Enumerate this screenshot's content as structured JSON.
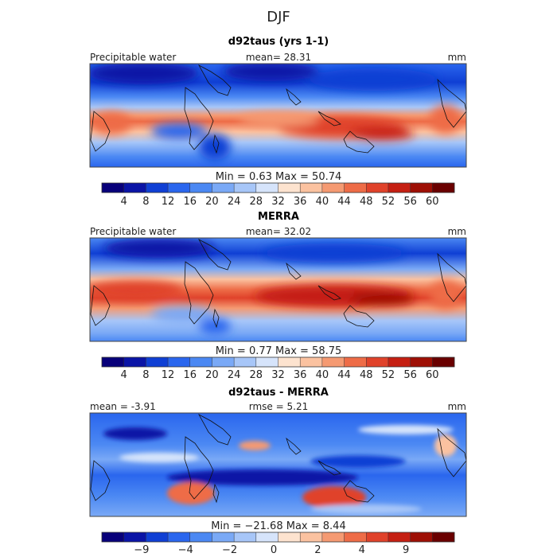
{
  "figure": {
    "title": "DJF"
  },
  "colors": {
    "scale": [
      "#08007a",
      "#0a14a6",
      "#0f3fd4",
      "#2a66ee",
      "#4b88f3",
      "#7aa9f6",
      "#a7c6f8",
      "#d6e4fb",
      "#fde3cf",
      "#fbc2a0",
      "#f59a72",
      "#ee6c47",
      "#e0422a",
      "#c51f12",
      "#9e0f05",
      "#6a0000"
    ],
    "ocean_bg": "#4b88f3",
    "panel_border": "#444444",
    "coast": "#111111"
  },
  "panels": [
    {
      "subtitle": "d92taus (yrs 1-1)",
      "left_label": "Precipitable water",
      "center_label": "mean=  28.31",
      "unit": "mm",
      "range_label": "Min =    0.63  Max =   50.74"
    },
    {
      "subtitle": "MERRA",
      "left_label": "Precipitable water",
      "center_label": "mean=  32.02",
      "unit": "mm",
      "range_label": "Min =    0.77  Max =   58.75"
    },
    {
      "subtitle": "d92taus - MERRA",
      "left_label": "mean =   -3.91",
      "center_label": "rmse =    5.21",
      "unit": "mm",
      "range_label": "Min = −21.68  Max =    8.44"
    }
  ],
  "chart_data": [
    {
      "type": "heatmap",
      "title": "d92taus (yrs 1-1)",
      "variable": "Precipitable water",
      "unit": "mm",
      "mean": 28.31,
      "min": 0.63,
      "max": 50.74,
      "colorbar": {
        "boundaries": [
          4,
          8,
          12,
          16,
          20,
          24,
          28,
          32,
          36,
          40,
          44,
          48,
          52,
          56,
          60
        ],
        "tick_labels": [
          "4",
          "8",
          "12",
          "16",
          "20",
          "24",
          "28",
          "32",
          "36",
          "40",
          "44",
          "48",
          "52",
          "56",
          "60"
        ]
      }
    },
    {
      "type": "heatmap",
      "title": "MERRA",
      "variable": "Precipitable water",
      "unit": "mm",
      "mean": 32.02,
      "min": 0.77,
      "max": 58.75,
      "colorbar": {
        "boundaries": [
          4,
          8,
          12,
          16,
          20,
          24,
          28,
          32,
          36,
          40,
          44,
          48,
          52,
          56,
          60
        ],
        "tick_labels": [
          "4",
          "8",
          "12",
          "16",
          "20",
          "24",
          "28",
          "32",
          "36",
          "40",
          "44",
          "48",
          "52",
          "56",
          "60"
        ]
      }
    },
    {
      "type": "heatmap",
      "title": "d92taus - MERRA",
      "unit": "mm",
      "mean": -3.91,
      "rmse": 5.21,
      "min": -21.68,
      "max": 8.44,
      "colorbar": {
        "tick_labels": [
          "−9",
          "−4",
          "−2",
          "0",
          "2",
          "4",
          "9"
        ]
      }
    }
  ]
}
